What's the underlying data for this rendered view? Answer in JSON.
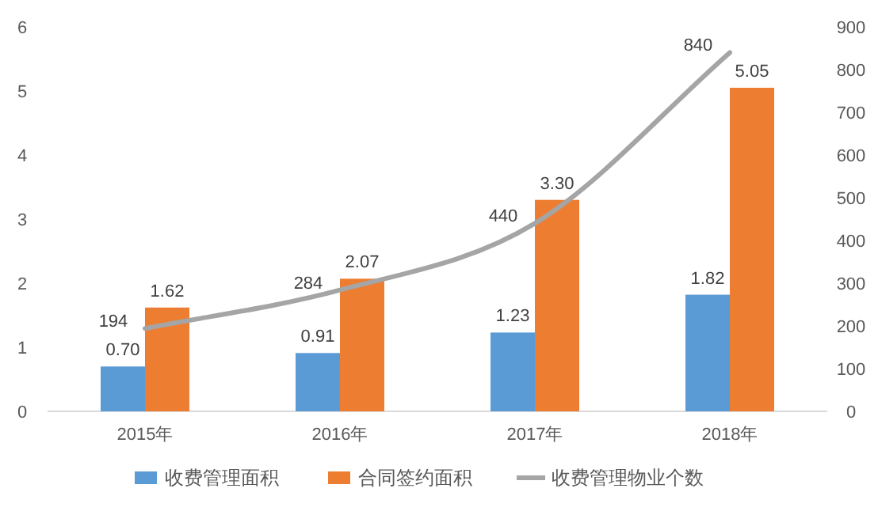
{
  "chart_data": {
    "type": "bar",
    "categories": [
      "2015年",
      "2016年",
      "2017年",
      "2018年"
    ],
    "series": [
      {
        "name": "收费管理面积",
        "color": "#5b9bd5",
        "values": [
          0.7,
          0.91,
          1.23,
          1.82
        ],
        "value_labels": [
          "0.70",
          "0.91",
          "1.23",
          "1.82"
        ]
      },
      {
        "name": "合同签约面积",
        "color": "#ed7d31",
        "values": [
          1.62,
          2.07,
          3.3,
          5.05
        ],
        "value_labels": [
          "1.62",
          "2.07",
          "3.30",
          "5.05"
        ]
      },
      {
        "name": "收费管理物业个数",
        "type": "line",
        "axis": "y2",
        "color": "#a5a5a5",
        "values": [
          194,
          284,
          440,
          840
        ],
        "value_labels": [
          "194",
          "284",
          "440",
          "840"
        ]
      }
    ],
    "ylim": [
      0,
      6
    ],
    "yticks": [
      0,
      1,
      2,
      3,
      4,
      5,
      6
    ],
    "y2lim": [
      0,
      900
    ],
    "y2ticks": [
      0,
      100,
      200,
      300,
      400,
      500,
      600,
      700,
      800,
      900
    ],
    "legend": "bottom",
    "grid": false,
    "marker": "none",
    "line_style": "solid"
  }
}
